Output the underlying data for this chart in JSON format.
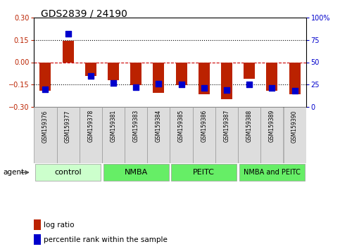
{
  "title": "GDS2839 / 24190",
  "samples": [
    "GSM159376",
    "GSM159377",
    "GSM159378",
    "GSM159381",
    "GSM159383",
    "GSM159384",
    "GSM159385",
    "GSM159386",
    "GSM159387",
    "GSM159388",
    "GSM159389",
    "GSM159390"
  ],
  "log_ratios": [
    -0.19,
    0.145,
    -0.09,
    -0.12,
    -0.155,
    -0.205,
    -0.155,
    -0.215,
    -0.245,
    -0.11,
    -0.19,
    -0.215
  ],
  "percentile_ranks": [
    20,
    82,
    35,
    27,
    22,
    26,
    25,
    21,
    19,
    25,
    21,
    18
  ],
  "group_configs": [
    {
      "start": 0,
      "end": 3,
      "label": "control",
      "color": "#ccffcc"
    },
    {
      "start": 3,
      "end": 6,
      "label": "NMBA",
      "color": "#66ee66"
    },
    {
      "start": 6,
      "end": 9,
      "label": "PEITC",
      "color": "#66ee66"
    },
    {
      "start": 9,
      "end": 12,
      "label": "NMBA and PEITC",
      "color": "#66ee66"
    }
  ],
  "ylim": [
    -0.3,
    0.3
  ],
  "yticks_left": [
    -0.3,
    -0.15,
    0.0,
    0.15,
    0.3
  ],
  "yticks_right": [
    0,
    25,
    50,
    75,
    100
  ],
  "bar_color": "#bb2200",
  "dot_color": "#0000cc",
  "hline_color": "#cc0000",
  "dotted_line_color": "#000000",
  "title_fontsize": 10,
  "tick_fontsize": 7,
  "sample_fontsize": 5.5,
  "group_fontsize": 8,
  "group_fontsize_small": 7,
  "bar_width": 0.5,
  "dot_size": 30
}
